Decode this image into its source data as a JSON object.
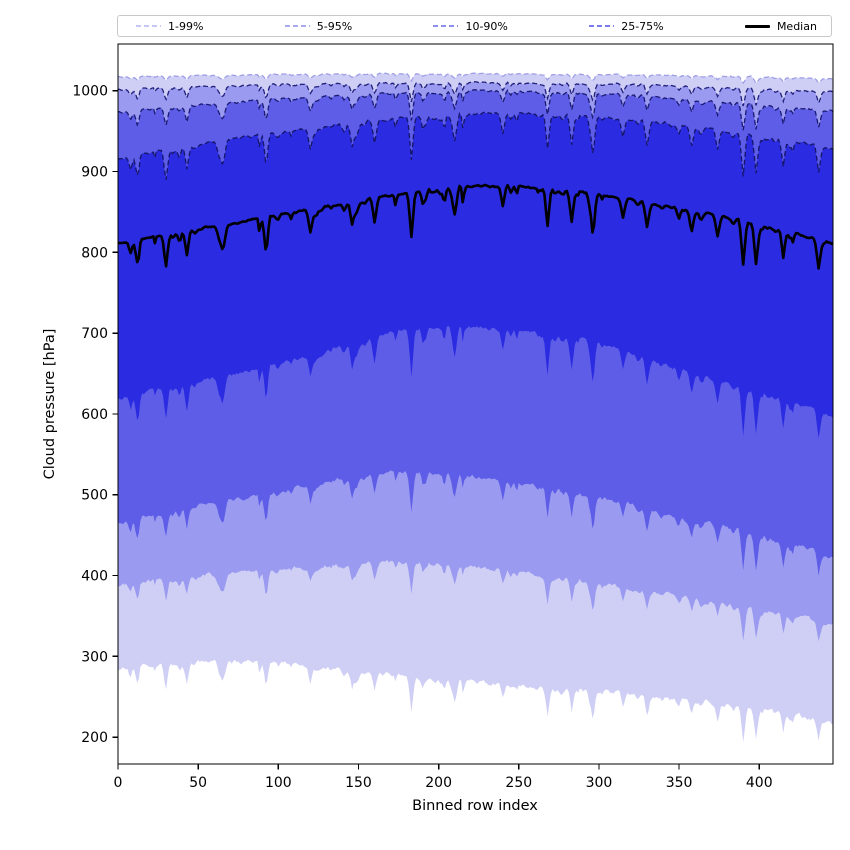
{
  "chart_data": {
    "type": "area",
    "subtype": "percentile-fan-chart",
    "title": "",
    "xlabel": "Binned row index",
    "ylabel": "Cloud pressure [hPa]",
    "x_range": [
      0,
      446
    ],
    "y_axis": {
      "inverted": true,
      "top_value": 1058,
      "bottom_value": 167
    },
    "xticks": [
      0,
      50,
      100,
      150,
      200,
      250,
      300,
      350,
      400
    ],
    "yticks": [
      200,
      300,
      400,
      500,
      600,
      700,
      800,
      900,
      1000
    ],
    "grid": false,
    "legend_position": "top-outside-horizontal",
    "legend": [
      {
        "label": "1-99%",
        "style": "dashed",
        "line_color": "#c7c7f3"
      },
      {
        "label": "5-95%",
        "style": "dashed",
        "line_color": "#a9a9ef"
      },
      {
        "label": "10-90%",
        "style": "dashed",
        "line_color": "#8e8eec"
      },
      {
        "label": "25-75%",
        "style": "dashed",
        "line_color": "#7b7bef"
      },
      {
        "label": "Median",
        "style": "solid",
        "line_color": "#000000"
      }
    ],
    "bands": [
      {
        "range": "1-99%",
        "upper": "p99",
        "lower": "p1",
        "fill": "#cfcff6",
        "upper_edge_color": "#9e9ee6"
      },
      {
        "range": "5-95%",
        "upper": "p95",
        "lower": "p5",
        "fill": "#9a9af0",
        "upper_edge_color": "#20207c"
      },
      {
        "range": "10-90%",
        "upper": "p90",
        "lower": "p10",
        "fill": "#5d5de7",
        "upper_edge_color": "#1a1a74"
      },
      {
        "range": "25-75%",
        "upper": "p75",
        "lower": "p25",
        "fill": "#2b2be1",
        "upper_edge_color": "#15156a"
      }
    ],
    "median_color": "#000000",
    "anchors_x": [
      0,
      25,
      50,
      75,
      100,
      125,
      150,
      175,
      200,
      225,
      250,
      275,
      300,
      325,
      350,
      375,
      400,
      425,
      446
    ],
    "series": [
      {
        "name": "p99",
        "values": [
          1017,
          1018,
          1019,
          1019,
          1020,
          1020,
          1021,
          1021,
          1021,
          1021,
          1021,
          1020,
          1020,
          1019,
          1019,
          1018,
          1017,
          1016,
          1014
        ]
      },
      {
        "name": "p95",
        "values": [
          1001,
          1003,
          1005,
          1006,
          1007,
          1008,
          1009,
          1009,
          1010,
          1010,
          1009,
          1009,
          1008,
          1007,
          1006,
          1004,
          1002,
          1000,
          998
        ]
      },
      {
        "name": "p90",
        "values": [
          973,
          978,
          982,
          986,
          989,
          992,
          995,
          997,
          999,
          1000,
          999,
          998,
          996,
          993,
          990,
          986,
          982,
          978,
          974
        ]
      },
      {
        "name": "p75",
        "values": [
          916,
          925,
          933,
          941,
          948,
          955,
          961,
          966,
          970,
          972,
          972,
          970,
          967,
          963,
          958,
          951,
          944,
          936,
          929
        ]
      },
      {
        "name": "median",
        "values": [
          812,
          820,
          829,
          837,
          846,
          855,
          864,
          872,
          879,
          882,
          881,
          877,
          871,
          863,
          854,
          845,
          834,
          822,
          811
        ]
      },
      {
        "name": "p25",
        "values": [
          618,
          630,
          640,
          650,
          662,
          676,
          690,
          703,
          709,
          707,
          702,
          696,
          688,
          672,
          655,
          640,
          626,
          611,
          596
        ]
      },
      {
        "name": "p10",
        "values": [
          464,
          476,
          486,
          494,
          504,
          514,
          522,
          528,
          527,
          521,
          514,
          506,
          497,
          484,
          471,
          461,
          449,
          436,
          422
        ]
      },
      {
        "name": "p5",
        "values": [
          388,
          394,
          399,
          403,
          407,
          411,
          414,
          416,
          414,
          410,
          404,
          397,
          390,
          382,
          374,
          366,
          356,
          348,
          340
        ]
      },
      {
        "name": "p1",
        "values": [
          284,
          289,
          292,
          293,
          291,
          287,
          282,
          277,
          272,
          268,
          264,
          260,
          256,
          252,
          247,
          242,
          234,
          226,
          217
        ]
      }
    ],
    "major_dips": [
      {
        "x": 12,
        "d": 28
      },
      {
        "x": 30,
        "d": 35
      },
      {
        "x": 43,
        "d": 30
      },
      {
        "x": 66,
        "d": 26
      },
      {
        "x": 92,
        "d": 24
      },
      {
        "x": 120,
        "d": 28
      },
      {
        "x": 146,
        "d": 30
      },
      {
        "x": 160,
        "d": 28
      },
      {
        "x": 183,
        "d": 52
      },
      {
        "x": 210,
        "d": 22
      },
      {
        "x": 240,
        "d": 20
      },
      {
        "x": 268,
        "d": 45
      },
      {
        "x": 283,
        "d": 38
      },
      {
        "x": 296,
        "d": 40
      },
      {
        "x": 315,
        "d": 24
      },
      {
        "x": 330,
        "d": 30
      },
      {
        "x": 358,
        "d": 22
      },
      {
        "x": 374,
        "d": 26
      },
      {
        "x": 390,
        "d": 55
      },
      {
        "x": 398,
        "d": 48
      },
      {
        "x": 415,
        "d": 30
      },
      {
        "x": 437,
        "d": 34
      }
    ]
  }
}
